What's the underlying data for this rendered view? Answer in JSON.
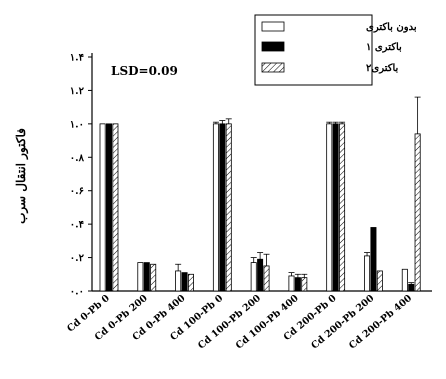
{
  "chart_data": {
    "type": "bar",
    "ylabel": "فاکتور انتقال سرب",
    "annotation": "LSD=0.09",
    "ylim": [
      0,
      1.4
    ],
    "yticks": [
      {
        "value": 0.0,
        "label": "۰.۰"
      },
      {
        "value": 0.2,
        "label": "۰.۲"
      },
      {
        "value": 0.4,
        "label": "۰.۴"
      },
      {
        "value": 0.6,
        "label": "۰.۶"
      },
      {
        "value": 0.8,
        "label": "۰.۸"
      },
      {
        "value": 1.0,
        "label": "۱.۰"
      },
      {
        "value": 1.2,
        "label": "۱.۲"
      },
      {
        "value": 1.4,
        "label": "۱.۴"
      }
    ],
    "categories": [
      "Cd 0-Pb 0",
      "Cd 0-Pb 200",
      "Cd 0-Pb 400",
      "Cd 100-Pb 0",
      "Cd 100-Pb 200",
      "Cd 100-Pb 400",
      "Cd 200-Pb 0",
      "Cd 200-Pb 200",
      "Cd 200-Pb 400"
    ],
    "series": [
      {
        "name": "بدون باکتری",
        "pattern": "open",
        "values": [
          1.0,
          0.17,
          0.12,
          1.0,
          0.17,
          0.09,
          1.0,
          0.21,
          0.13
        ],
        "errors": [
          0,
          0,
          0.04,
          0.01,
          0.03,
          0.02,
          0.01,
          0.02,
          0
        ]
      },
      {
        "name": "باکتری ۱",
        "pattern": "solid",
        "values": [
          1.0,
          0.17,
          0.11,
          1.0,
          0.19,
          0.08,
          1.0,
          0.38,
          0.04
        ],
        "errors": [
          0,
          0,
          0,
          0.02,
          0.04,
          0.02,
          0.01,
          0,
          0.01
        ]
      },
      {
        "name": "باکتری۲",
        "pattern": "hatched",
        "values": [
          1.0,
          0.16,
          0.1,
          1.0,
          0.15,
          0.08,
          1.0,
          0.12,
          0.94
        ],
        "errors": [
          0,
          0,
          0,
          0.03,
          0.07,
          0.02,
          0.01,
          0,
          0.22
        ]
      }
    ],
    "legend_position": "top-right",
    "grid": false,
    "colors": {
      "axis": "#000000",
      "solid": "#000000",
      "open": "#ffffff"
    }
  }
}
